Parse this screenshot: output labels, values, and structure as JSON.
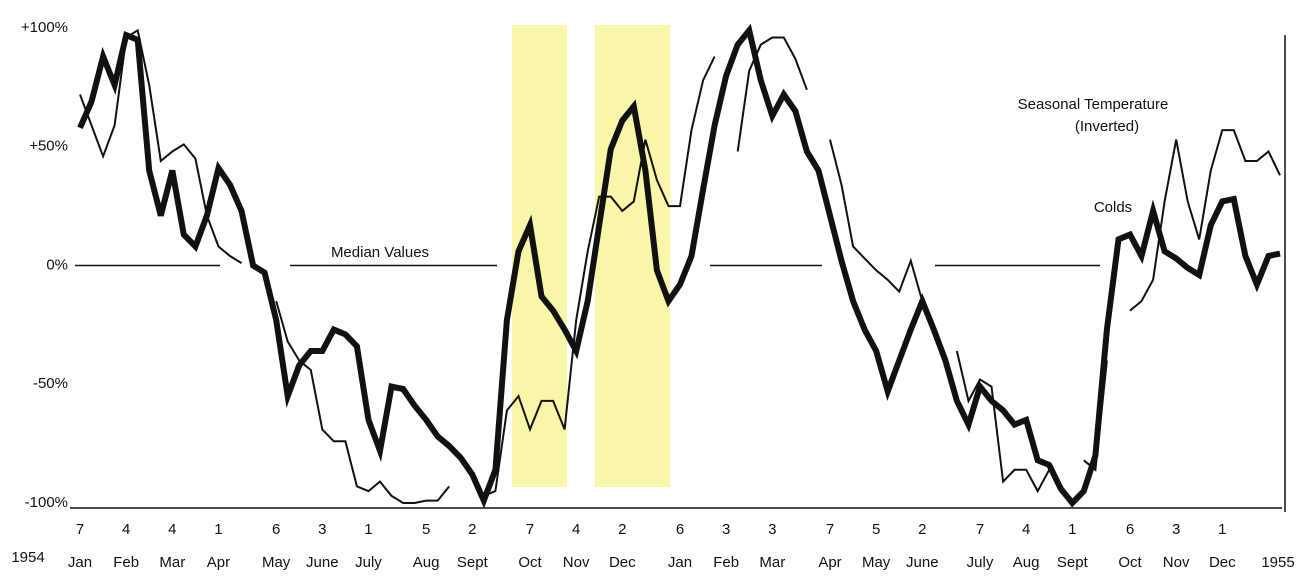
{
  "chart_data": {
    "type": "line",
    "annotations": {
      "median": "Median Values",
      "temp_line1": "Seasonal Temperature",
      "temp_line2": "(Inverted)",
      "colds": "Colds",
      "year_start": "1954",
      "year_end": "1955"
    },
    "x": [
      0,
      1,
      2,
      3,
      4,
      5,
      6,
      7,
      8,
      9,
      10,
      11,
      12,
      13,
      14,
      15,
      16,
      17,
      18,
      19,
      20,
      21,
      22,
      23,
      24,
      25,
      26,
      27,
      28,
      29,
      30,
      31,
      32,
      33,
      34,
      35,
      36,
      37,
      38,
      39,
      40,
      41,
      42,
      43,
      44,
      45,
      46,
      47,
      48,
      49,
      50,
      51,
      52,
      53,
      54,
      55,
      56,
      57,
      58,
      59,
      60,
      61,
      62,
      63,
      64,
      65,
      66,
      67,
      68,
      69,
      70,
      71,
      72,
      73,
      74,
      75,
      76,
      77,
      78,
      79,
      80,
      81,
      82,
      83,
      84,
      85,
      86,
      87,
      88,
      89,
      90,
      91,
      92,
      93,
      94,
      95,
      96,
      97,
      98,
      99,
      100,
      101,
      102,
      103,
      104
    ],
    "series": [
      {
        "name": "Colds",
        "color": "#111111",
        "width": 6,
        "values": [
          58,
          69,
          88,
          76,
          97,
          95,
          40,
          21,
          40,
          13,
          8,
          21,
          41,
          34,
          23,
          0,
          -3,
          -23,
          -55,
          -42,
          -36,
          -36,
          -27,
          -29,
          -34,
          -65,
          -78,
          -51,
          -52,
          -59,
          -65,
          -72,
          -76,
          -81,
          -88,
          -99,
          -86,
          -23,
          6,
          17,
          -13,
          -19,
          -27,
          -36,
          -15,
          17,
          49,
          61,
          67,
          40,
          -2,
          -15,
          -8,
          4,
          32,
          59,
          80,
          93,
          99,
          78,
          63,
          72,
          65,
          48,
          40,
          21,
          2,
          -15,
          -27,
          -36,
          -53,
          -40,
          -27,
          -15,
          -27,
          -40,
          -57,
          -67,
          -51,
          -57,
          -61,
          -67,
          -65,
          -82,
          -84,
          -94,
          -100,
          -95,
          -80,
          -27,
          11,
          13,
          4,
          23,
          6,
          3,
          -1,
          -4,
          17,
          27,
          28,
          4,
          -8,
          4,
          5
        ]
      },
      {
        "name": "Seasonal Temperature (Inverted)",
        "color": "#111111",
        "width": 2,
        "values": [
          72,
          59,
          46,
          59,
          96,
          99,
          76,
          44,
          48,
          51,
          45,
          21,
          8,
          4,
          1,
          null,
          null,
          -15,
          -32,
          -40,
          -44,
          -69,
          -74,
          -74,
          -93,
          -95,
          -91,
          -97,
          -100,
          -100,
          -99,
          -99,
          -93,
          null,
          null,
          -97,
          -95,
          -61,
          -55,
          -69,
          -57,
          -57,
          -69,
          -23,
          6,
          29,
          29,
          23,
          27,
          53,
          36,
          25,
          25,
          57,
          78,
          88,
          null,
          48,
          82,
          93,
          96,
          96,
          87,
          74,
          null,
          53,
          34,
          8,
          3,
          -2,
          -6,
          -11,
          2,
          -15,
          null,
          null,
          -36,
          -57,
          -48,
          -51,
          -91,
          -86,
          -86,
          -95,
          -86,
          null,
          null,
          -82,
          -86,
          -40,
          null,
          -19,
          -15,
          -6,
          27,
          53,
          27,
          11,
          40,
          57,
          57,
          44,
          44,
          48,
          38
        ]
      }
    ],
    "xlim": [
      0,
      104
    ],
    "xticks": [
      {
        "value": 0,
        "label": "Jan",
        "day": "7"
      },
      {
        "value": 4,
        "label": "Feb",
        "day": "4"
      },
      {
        "value": 8,
        "label": "Mar",
        "day": "4"
      },
      {
        "value": 12,
        "label": "Apr",
        "day": "1"
      },
      {
        "value": 17,
        "label": "May",
        "day": "6"
      },
      {
        "value": 21,
        "label": "June",
        "day": "3"
      },
      {
        "value": 25,
        "label": "July",
        "day": "1"
      },
      {
        "value": 30,
        "label": "Aug",
        "day": "5"
      },
      {
        "value": 34,
        "label": "Sept",
        "day": "2"
      },
      {
        "value": 39,
        "label": "Oct",
        "day": "7"
      },
      {
        "value": 43,
        "label": "Nov",
        "day": "4"
      },
      {
        "value": 47,
        "label": "Dec",
        "day": "2"
      },
      {
        "value": 52,
        "label": "Jan",
        "day": "6"
      },
      {
        "value": 56,
        "label": "Feb",
        "day": "3"
      },
      {
        "value": 60,
        "label": "Mar",
        "day": "3"
      },
      {
        "value": 65,
        "label": "Apr",
        "day": "7"
      },
      {
        "value": 69,
        "label": "May",
        "day": "5"
      },
      {
        "value": 73,
        "label": "June",
        "day": "2"
      },
      {
        "value": 78,
        "label": "July",
        "day": "7"
      },
      {
        "value": 82,
        "label": "Aug",
        "day": "4"
      },
      {
        "value": 86,
        "label": "Sept",
        "day": "1"
      },
      {
        "value": 91,
        "label": "Oct",
        "day": "6"
      },
      {
        "value": 95,
        "label": "Nov",
        "day": "3"
      },
      {
        "value": 99,
        "label": "Dec",
        "day": "1"
      }
    ],
    "ylim": [
      -100,
      100
    ],
    "yticks": [
      {
        "value": -100,
        "label": "-100%"
      },
      {
        "value": -50,
        "label": "-50%"
      },
      {
        "value": 0,
        "label": "0%"
      },
      {
        "value": 50,
        "label": "+50%"
      },
      {
        "value": 100,
        "label": "+100%"
      }
    ],
    "highlight_color": "#f8f59a"
  }
}
